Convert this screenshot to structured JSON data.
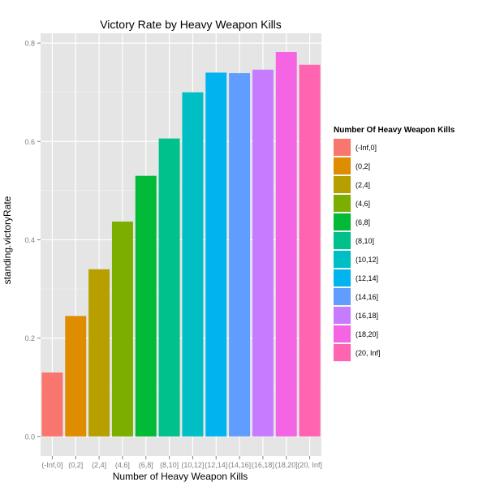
{
  "chart_data": {
    "type": "bar",
    "title": "Victory Rate by Heavy Weapon Kills",
    "xlabel": "Number of Heavy Weapon Kills",
    "ylabel": "standing.victoryRate",
    "categories": [
      "(-Inf,0]",
      "(0,2]",
      "(2,4]",
      "(4,6]",
      "(6,8]",
      "(8,10]",
      "(10,12]",
      "(12,14]",
      "(14,16]",
      "(16,18]",
      "(18,20]",
      "(20, Inf]"
    ],
    "values": [
      0.13,
      0.245,
      0.34,
      0.437,
      0.53,
      0.606,
      0.7,
      0.74,
      0.739,
      0.746,
      0.782,
      0.756
    ],
    "colors": [
      "#F8766D",
      "#DE8C00",
      "#B79F00",
      "#7CAE00",
      "#00BA38",
      "#00C08B",
      "#00BFC4",
      "#00B4F0",
      "#619CFF",
      "#C77CFF",
      "#F564E3",
      "#FF64B0"
    ],
    "ylim": [
      -0.04,
      0.82
    ],
    "y_ticks": [
      "0.0",
      "0.2",
      "0.4",
      "0.6",
      "0.8"
    ],
    "y_tick_values": [
      0.0,
      0.2,
      0.4,
      0.6,
      0.8
    ],
    "grid": true,
    "legend": {
      "title": "Number Of Heavy Weapon Kills",
      "position": "right"
    },
    "panel_background": "#E5E5E5",
    "grid_color": "#FFFFFF"
  }
}
